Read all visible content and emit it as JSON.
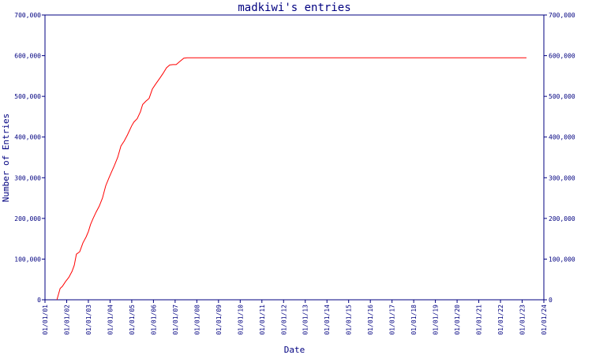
{
  "chart_data": {
    "type": "line",
    "title": "madkiwi's entries",
    "xlabel": "Date",
    "ylabel": "Number of Entries",
    "x_ticks": [
      "01/01/01",
      "01/01/02",
      "01/01/03",
      "01/01/04",
      "01/01/05",
      "01/01/06",
      "01/01/07",
      "01/01/08",
      "01/01/09",
      "01/01/10",
      "01/01/11",
      "01/01/12",
      "01/01/13",
      "01/01/14",
      "01/01/15",
      "01/01/16",
      "01/01/17",
      "01/01/18",
      "01/01/19",
      "01/01/20",
      "01/01/21",
      "01/01/22",
      "01/01/23",
      "01/01/24"
    ],
    "y_ticks": [
      "0",
      "100,000",
      "200,000",
      "300,000",
      "400,000",
      "500,000",
      "600,000",
      "700,000"
    ],
    "ylim": [
      0,
      700000
    ],
    "xlim": [
      2001,
      2024
    ],
    "grid": false,
    "colors": {
      "axis": "#000080",
      "line": "#ff0000"
    },
    "series": [
      {
        "x": [
          2001.55,
          2001.7,
          2001.8,
          2001.95,
          2002.1,
          2002.25,
          2002.35,
          2002.45,
          2002.6,
          2002.75,
          2002.9,
          2003.0,
          2003.1,
          2003.2,
          2003.35,
          2003.5,
          2003.65,
          2003.8,
          2003.95,
          2004.05,
          2004.2,
          2004.35,
          2004.5,
          2004.65,
          2004.8,
          2005.0,
          2005.1,
          2005.25,
          2005.4,
          2005.5,
          2005.65,
          2005.8,
          2005.95,
          2006.1,
          2006.3,
          2006.45,
          2006.6,
          2006.75,
          2006.9,
          2007.05,
          2007.2,
          2007.4,
          2007.55,
          2007.7,
          2007.85,
          2008.05,
          2008.2,
          2008.3,
          2009.0,
          2012.0,
          2016.0,
          2020.0,
          2023.2
        ],
        "y": [
          0,
          28000,
          33000,
          45000,
          55000,
          70000,
          85000,
          112000,
          118000,
          140000,
          155000,
          168000,
          185000,
          198000,
          215000,
          230000,
          250000,
          280000,
          300000,
          312000,
          330000,
          350000,
          378000,
          390000,
          405000,
          428000,
          437000,
          445000,
          462000,
          480000,
          488000,
          495000,
          518000,
          530000,
          545000,
          557000,
          570000,
          577000,
          578000,
          578000,
          585000,
          594000,
          595000,
          595000,
          595000,
          595000,
          595000,
          595000,
          595000,
          595000,
          595000,
          595000,
          595000
        ]
      }
    ]
  }
}
